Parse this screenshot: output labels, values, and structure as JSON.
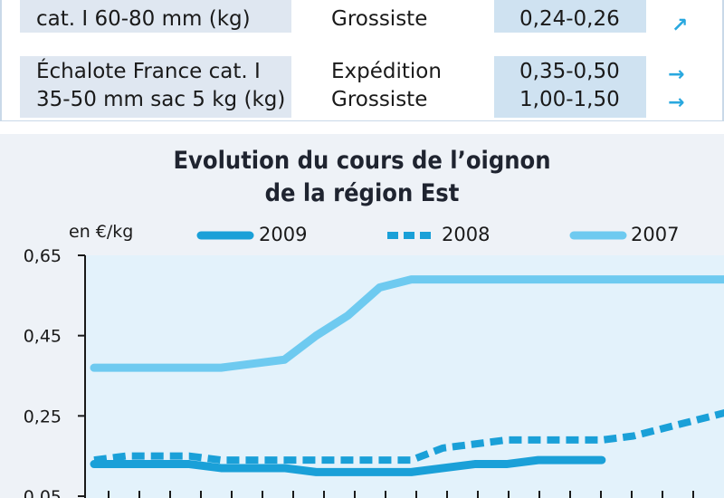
{
  "table": {
    "rows": [
      {
        "product_lines": [
          "cat. I 60-80 mm (kg)"
        ],
        "stages": [
          "Grossiste"
        ],
        "prices": [
          "0,24-0,26"
        ],
        "trends": [
          "up"
        ]
      },
      {
        "product_lines": [
          "Échalote France cat. I",
          "35-50 mm sac 5 kg (kg)"
        ],
        "stages": [
          "Expédition",
          "Grossiste"
        ],
        "prices": [
          "0,35-0,50",
          "1,00-1,50"
        ],
        "trends": [
          "stable",
          "stable"
        ]
      }
    ],
    "colors": {
      "arrow": "#29a8df",
      "product_bg": "#dfe7f1",
      "price_bg": "#cfe2f1"
    }
  },
  "chart_data": {
    "type": "line",
    "title_lines": [
      "Evolution du cours de l’oignon",
      "de la région Est"
    ],
    "unit_label": "en €/kg",
    "ylim": [
      0.05,
      0.65
    ],
    "yticks": [
      "0,65",
      "0,45",
      "0,25",
      "0,05"
    ],
    "ytick_values": [
      0.65,
      0.45,
      0.25,
      0.05
    ],
    "x_count": 20,
    "grid": false,
    "legend_position": "top",
    "series": [
      {
        "name": "2009",
        "style": "solid-thick",
        "color": "#1aa0d8",
        "values": [
          0.13,
          0.13,
          0.13,
          0.13,
          0.12,
          0.12,
          0.12,
          0.11,
          0.11,
          0.11,
          0.11,
          0.12,
          0.13,
          0.13,
          0.14,
          0.14,
          0.14
        ]
      },
      {
        "name": "2008",
        "style": "dashed",
        "color": "#1aa0d8",
        "values": [
          0.14,
          0.15,
          0.15,
          0.15,
          0.14,
          0.14,
          0.14,
          0.14,
          0.14,
          0.14,
          0.14,
          0.17,
          0.18,
          0.19,
          0.19,
          0.19,
          0.19,
          0.2,
          0.22,
          0.24,
          0.26
        ]
      },
      {
        "name": "2007",
        "style": "solid",
        "color": "#6ecaf0",
        "values": [
          0.37,
          0.37,
          0.37,
          0.37,
          0.37,
          0.38,
          0.39,
          0.45,
          0.5,
          0.57,
          0.59,
          0.59,
          0.59,
          0.59,
          0.59,
          0.59,
          0.59,
          0.59,
          0.59,
          0.59,
          0.59
        ]
      }
    ]
  }
}
